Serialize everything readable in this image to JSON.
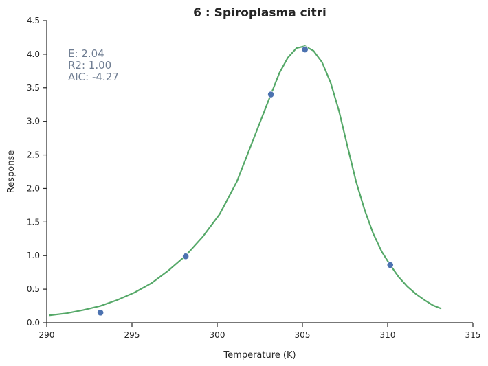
{
  "chart_data": {
    "type": "scatter",
    "title": "6 : Spiroplasma citri",
    "xlabel": "Temperature (K)",
    "ylabel": "Response",
    "xlim": [
      290,
      315
    ],
    "ylim": [
      0.0,
      4.5
    ],
    "xticks": [
      "290",
      "295",
      "300",
      "305",
      "310",
      "315"
    ],
    "yticks": [
      "0.0",
      "0.5",
      "1.0",
      "1.5",
      "2.0",
      "2.5",
      "3.0",
      "3.5",
      "4.0",
      "4.5"
    ],
    "grid": false,
    "annotations": [
      "E:  2.04",
      "R2:  1.00",
      "AIC: -4.27"
    ],
    "points": {
      "x": [
        293.15,
        298.15,
        303.15,
        305.15,
        310.15
      ],
      "y": [
        0.15,
        0.99,
        3.4,
        4.07,
        0.86
      ]
    },
    "fit": {
      "x": [
        290.15,
        291.15,
        292.15,
        293.15,
        294.15,
        295.15,
        296.15,
        297.15,
        298.15,
        299.15,
        300.15,
        301.15,
        302.15,
        303.15,
        303.65,
        304.15,
        304.65,
        305.15,
        305.65,
        306.15,
        306.65,
        307.15,
        307.65,
        308.15,
        308.65,
        309.15,
        309.65,
        310.15,
        310.65,
        311.15,
        311.65,
        312.15,
        312.65,
        313.15
      ],
      "y": [
        0.11,
        0.14,
        0.19,
        0.25,
        0.34,
        0.45,
        0.59,
        0.78,
        1.0,
        1.28,
        1.62,
        2.1,
        2.75,
        3.4,
        3.72,
        3.95,
        4.09,
        4.12,
        4.05,
        3.88,
        3.58,
        3.15,
        2.62,
        2.1,
        1.68,
        1.33,
        1.06,
        0.86,
        0.68,
        0.54,
        0.43,
        0.34,
        0.26,
        0.21
      ]
    },
    "colors": {
      "points": "#4c72b0",
      "fit": "#55a868",
      "annotation": "#6f7d92"
    }
  }
}
